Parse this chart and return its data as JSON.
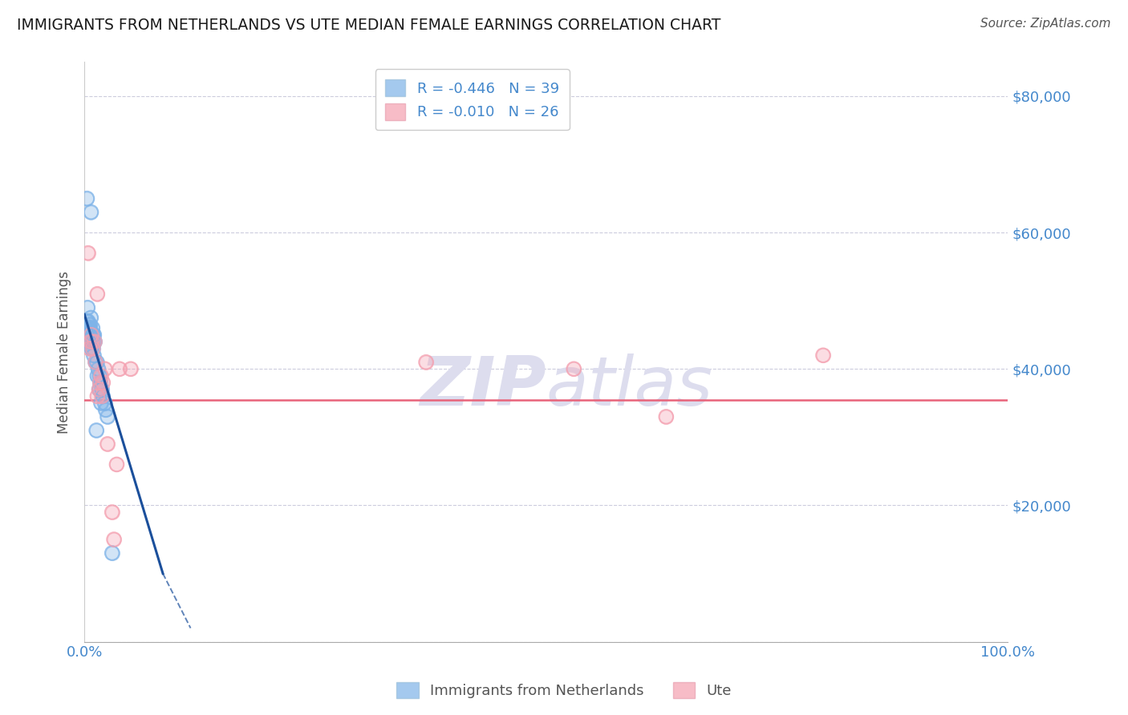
{
  "title": "IMMIGRANTS FROM NETHERLANDS VS UTE MEDIAN FEMALE EARNINGS CORRELATION CHART",
  "source": "Source: ZipAtlas.com",
  "ylabel": "Median Female Earnings",
  "xlim": [
    0,
    100
  ],
  "ylim": [
    0,
    85000
  ],
  "yticks": [
    0,
    20000,
    40000,
    60000,
    80000
  ],
  "right_ytick_labels": [
    "",
    "$20,000",
    "$40,000",
    "$60,000",
    "$80,000"
  ],
  "xticks": [
    0,
    12.5,
    25,
    37.5,
    50,
    62.5,
    75,
    87.5,
    100
  ],
  "xtick_labels_show": {
    "0": "0.0%",
    "100": "100.0%"
  },
  "legend1_r": "-0.446",
  "legend1_n": "39",
  "legend2_r": "-0.010",
  "legend2_n": "26",
  "blue_color": "#7EB3E8",
  "pink_color": "#F4A0B0",
  "line_blue_color": "#1B4F9B",
  "line_pink_color": "#E8637A",
  "title_color": "#1a1a1a",
  "axis_label_color": "#555555",
  "tick_color": "#4488CC",
  "grid_color": "#CCCCDD",
  "background_color": "#FFFFFF",
  "watermark_color": "#DDDDEE",
  "blue_x": [
    0.3,
    0.7,
    0.5,
    0.6,
    0.9,
    0.8,
    1.0,
    0.4,
    0.35,
    1.4,
    1.6,
    1.1,
    0.6,
    0.95,
    2.0,
    0.25,
    0.55,
    1.2,
    0.75,
    1.5,
    1.8,
    1.35,
    0.28,
    0.72,
    0.88,
    2.5,
    2.3,
    0.45,
    1.05,
    1.9,
    0.38,
    0.62,
    1.65,
    2.2,
    3.0,
    1.3,
    0.52,
    1.7,
    0.92
  ],
  "blue_y": [
    45000,
    47500,
    46000,
    46500,
    44000,
    43000,
    42000,
    45500,
    49000,
    39000,
    37000,
    44000,
    46000,
    45000,
    36000,
    47000,
    44000,
    41000,
    45000,
    40000,
    35000,
    41000,
    65000,
    63000,
    46000,
    33000,
    34000,
    46000,
    45000,
    37000,
    47000,
    45000,
    39000,
    35000,
    13000,
    31000,
    46000,
    38000,
    43000
  ],
  "pink_x": [
    0.4,
    1.4,
    2.2,
    0.55,
    1.7,
    3.0,
    5.0,
    0.75,
    1.1,
    1.8,
    0.9,
    0.65,
    1.2,
    2.5,
    3.5,
    3.8,
    1.4,
    0.85,
    2.0,
    37.0,
    63.0,
    80.0,
    53.0,
    3.2,
    1.9,
    1.6
  ],
  "pink_y": [
    57000,
    51000,
    40000,
    43000,
    38000,
    19000,
    40000,
    45000,
    44000,
    39000,
    43000,
    44000,
    41000,
    29000,
    26000,
    40000,
    36000,
    44000,
    38000,
    41000,
    33000,
    42000,
    40000,
    15000,
    36000,
    37000
  ],
  "blue_reg_x0": 0.0,
  "blue_reg_y0": 48000,
  "blue_reg_x1": 8.5,
  "blue_reg_y1": 10000,
  "blue_reg_dashed_x1": 11.5,
  "blue_reg_dashed_y1": 2000,
  "pink_reg_y": 35500
}
